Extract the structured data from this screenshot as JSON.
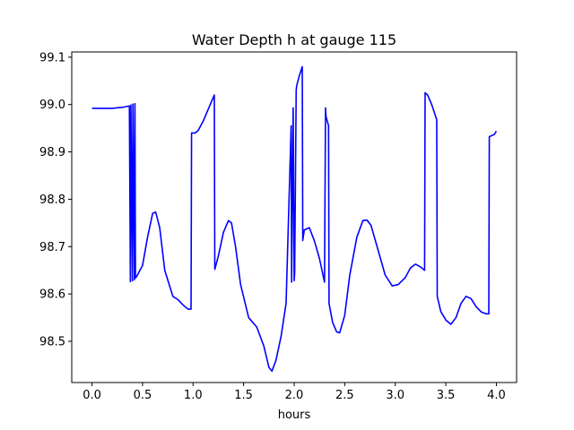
{
  "chart_data": {
    "type": "line",
    "title": "Water Depth h at gauge 115",
    "xlabel": "hours",
    "ylabel": "",
    "xlim": [
      -0.2,
      4.2
    ],
    "ylim": [
      98.413,
      99.111
    ],
    "x_ticks": [
      0.0,
      0.5,
      1.0,
      1.5,
      2.0,
      2.5,
      3.0,
      3.5,
      4.0
    ],
    "x_tick_labels": [
      "0.0",
      "0.5",
      "1.0",
      "1.5",
      "2.0",
      "2.5",
      "3.0",
      "3.5",
      "4.0"
    ],
    "y_ticks": [
      98.5,
      98.6,
      98.7,
      98.8,
      98.9,
      99.0,
      99.1
    ],
    "y_tick_labels": [
      "98.5",
      "98.6",
      "98.7",
      "98.8",
      "98.9",
      "99.0",
      "99.1"
    ],
    "grid": false,
    "colors": {
      "line": "#0000ff",
      "axes": "#000000",
      "background": "#ffffff"
    },
    "series": [
      {
        "name": "",
        "x": [
          0.0,
          0.1,
          0.2,
          0.3,
          0.37,
          0.38,
          0.385,
          0.4,
          0.405,
          0.42,
          0.425,
          0.43,
          0.435,
          0.445,
          0.5,
          0.55,
          0.6,
          0.63,
          0.67,
          0.72,
          0.8,
          0.85,
          0.9,
          0.95,
          0.98,
          0.985,
          1.0,
          1.02,
          1.05,
          1.1,
          1.15,
          1.21,
          1.215,
          1.25,
          1.3,
          1.35,
          1.38,
          1.42,
          1.47,
          1.55,
          1.63,
          1.7,
          1.75,
          1.78,
          1.82,
          1.87,
          1.92,
          1.97,
          1.975,
          1.99,
          2.0,
          2.005,
          2.02,
          2.025,
          2.05,
          2.08,
          2.085,
          2.1,
          2.15,
          2.2,
          2.25,
          2.3,
          2.31,
          2.315,
          2.34,
          2.345,
          2.38,
          2.42,
          2.45,
          2.5,
          2.55,
          2.62,
          2.68,
          2.72,
          2.76,
          2.82,
          2.9,
          2.97,
          3.03,
          3.1,
          3.15,
          3.2,
          3.25,
          3.29,
          3.295,
          3.32,
          3.36,
          3.41,
          3.415,
          3.45,
          3.5,
          3.55,
          3.6,
          3.65,
          3.7,
          3.75,
          3.8,
          3.85,
          3.9,
          3.925,
          3.93,
          3.96,
          3.98,
          4.0
        ],
        "y": [
          98.992,
          98.992,
          98.992,
          98.994,
          98.997,
          98.626,
          98.999,
          98.628,
          99.001,
          98.63,
          99.002,
          98.634,
          98.635,
          98.638,
          98.66,
          98.72,
          98.77,
          98.773,
          98.74,
          98.65,
          98.595,
          98.588,
          98.577,
          98.568,
          98.568,
          98.94,
          98.94,
          98.94,
          98.945,
          98.965,
          98.99,
          99.02,
          98.652,
          98.68,
          98.73,
          98.755,
          98.75,
          98.7,
          98.62,
          98.55,
          98.53,
          98.49,
          98.445,
          98.437,
          98.46,
          98.51,
          98.58,
          98.955,
          98.625,
          98.993,
          98.628,
          98.645,
          99.03,
          99.04,
          99.06,
          99.08,
          98.713,
          98.735,
          98.74,
          98.712,
          98.675,
          98.625,
          98.993,
          98.975,
          98.955,
          98.58,
          98.54,
          98.52,
          98.518,
          98.555,
          98.64,
          98.72,
          98.755,
          98.756,
          98.745,
          98.7,
          98.64,
          98.617,
          98.62,
          98.635,
          98.655,
          98.663,
          98.657,
          98.65,
          99.025,
          99.02,
          99.0,
          98.968,
          98.595,
          98.563,
          98.545,
          98.536,
          98.55,
          98.58,
          98.595,
          98.59,
          98.573,
          98.562,
          98.558,
          98.558,
          98.932,
          98.935,
          98.937,
          98.944
        ]
      }
    ]
  }
}
